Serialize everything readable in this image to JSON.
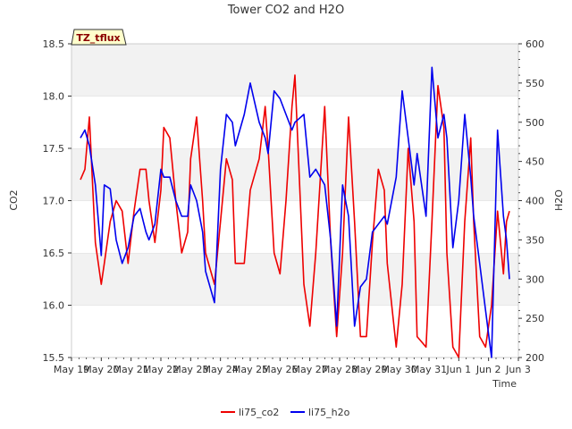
{
  "chart_data": {
    "type": "line",
    "title": "Tower CO2 and H2O",
    "badge": "TZ_tflux",
    "xlabel": "Time",
    "ylabel_left": "CO2",
    "ylabel_right": "H2O",
    "x_ticks": [
      "May 19",
      "May 20",
      "May 21",
      "May 22",
      "May 23",
      "May 24",
      "May 25",
      "May 26",
      "May 27",
      "May 28",
      "May 29",
      "May 30",
      "May 31",
      "Jun 1",
      "Jun 2",
      "Jun 3"
    ],
    "xlim_days": [
      0,
      15
    ],
    "ylim_left": [
      15.5,
      18.5
    ],
    "ylim_right": [
      200,
      600
    ],
    "y_ticks_left": [
      "15.5",
      "16.0",
      "16.5",
      "17.0",
      "17.5",
      "18.0",
      "18.5"
    ],
    "y_ticks_right": [
      "200",
      "250",
      "300",
      "350",
      "400",
      "450",
      "500",
      "550",
      "600"
    ],
    "grid": "horizontal bands",
    "legend_position": "bottom-center",
    "series": [
      {
        "name": "li75_co2",
        "axis": "left",
        "color": "#ee0000",
        "x": [
          0.3,
          0.45,
          0.6,
          0.8,
          1.0,
          1.1,
          1.3,
          1.5,
          1.7,
          1.9,
          2.1,
          2.3,
          2.5,
          2.6,
          2.8,
          3.0,
          3.1,
          3.3,
          3.5,
          3.7,
          3.9,
          4.0,
          4.2,
          4.4,
          4.5,
          4.8,
          5.0,
          5.2,
          5.4,
          5.5,
          5.8,
          6.0,
          6.3,
          6.5,
          6.6,
          6.8,
          7.0,
          7.2,
          7.4,
          7.5,
          7.8,
          8.0,
          8.2,
          8.5,
          8.7,
          8.9,
          9.1,
          9.3,
          9.5,
          9.7,
          9.9,
          10.1,
          10.3,
          10.5,
          10.6,
          10.9,
          11.1,
          11.3,
          11.5,
          11.6,
          11.9,
          12.1,
          12.3,
          12.5,
          12.6,
          12.8,
          13.0,
          13.2,
          13.4,
          13.5,
          13.7,
          13.9,
          14.1,
          14.3,
          14.5,
          14.6,
          14.7
        ],
        "values": [
          17.2,
          17.3,
          17.8,
          16.6,
          16.2,
          16.4,
          16.8,
          17.0,
          16.9,
          16.4,
          16.9,
          17.3,
          17.3,
          17.0,
          16.6,
          17.1,
          17.7,
          17.6,
          17.0,
          16.5,
          16.7,
          17.4,
          17.8,
          17.0,
          16.5,
          16.2,
          16.8,
          17.4,
          17.2,
          16.4,
          16.4,
          17.1,
          17.4,
          17.9,
          17.5,
          16.5,
          16.3,
          17.0,
          17.9,
          18.2,
          16.2,
          15.8,
          16.5,
          17.9,
          16.6,
          15.7,
          16.5,
          17.8,
          16.8,
          15.7,
          15.7,
          16.6,
          17.3,
          17.1,
          16.4,
          15.6,
          16.2,
          17.5,
          16.8,
          15.7,
          15.6,
          16.8,
          18.1,
          17.7,
          16.5,
          15.6,
          15.5,
          16.8,
          17.6,
          16.8,
          15.7,
          15.6,
          16.0,
          16.9,
          16.3,
          16.8,
          16.9
        ]
      },
      {
        "name": "li75_h2o",
        "axis": "right",
        "color": "#0000ee",
        "x": [
          0.3,
          0.45,
          0.6,
          0.8,
          1.0,
          1.1,
          1.3,
          1.5,
          1.7,
          1.9,
          2.1,
          2.3,
          2.5,
          2.6,
          2.8,
          3.0,
          3.1,
          3.3,
          3.5,
          3.7,
          3.9,
          4.0,
          4.2,
          4.4,
          4.5,
          4.8,
          5.0,
          5.2,
          5.4,
          5.5,
          5.8,
          6.0,
          6.3,
          6.5,
          6.6,
          6.8,
          7.0,
          7.2,
          7.4,
          7.5,
          7.8,
          8.0,
          8.2,
          8.5,
          8.7,
          8.9,
          9.1,
          9.3,
          9.5,
          9.7,
          9.9,
          10.1,
          10.3,
          10.5,
          10.6,
          10.9,
          11.1,
          11.3,
          11.5,
          11.6,
          11.9,
          12.1,
          12.3,
          12.5,
          12.6,
          12.8,
          13.0,
          13.2,
          13.4,
          13.5,
          13.7,
          13.9,
          14.1,
          14.3,
          14.5,
          14.6,
          14.7
        ],
        "values": [
          480,
          490,
          470,
          420,
          330,
          420,
          415,
          350,
          320,
          340,
          380,
          390,
          360,
          350,
          370,
          440,
          430,
          430,
          400,
          380,
          380,
          420,
          400,
          360,
          310,
          270,
          440,
          510,
          500,
          470,
          510,
          550,
          500,
          480,
          460,
          540,
          530,
          510,
          490,
          500,
          510,
          430,
          440,
          420,
          350,
          240,
          420,
          380,
          240,
          290,
          300,
          360,
          370,
          380,
          370,
          430,
          540,
          480,
          420,
          460,
          380,
          570,
          480,
          510,
          480,
          340,
          400,
          510,
          430,
          380,
          320,
          260,
          200,
          490,
          380,
          350,
          300
        ]
      }
    ]
  }
}
